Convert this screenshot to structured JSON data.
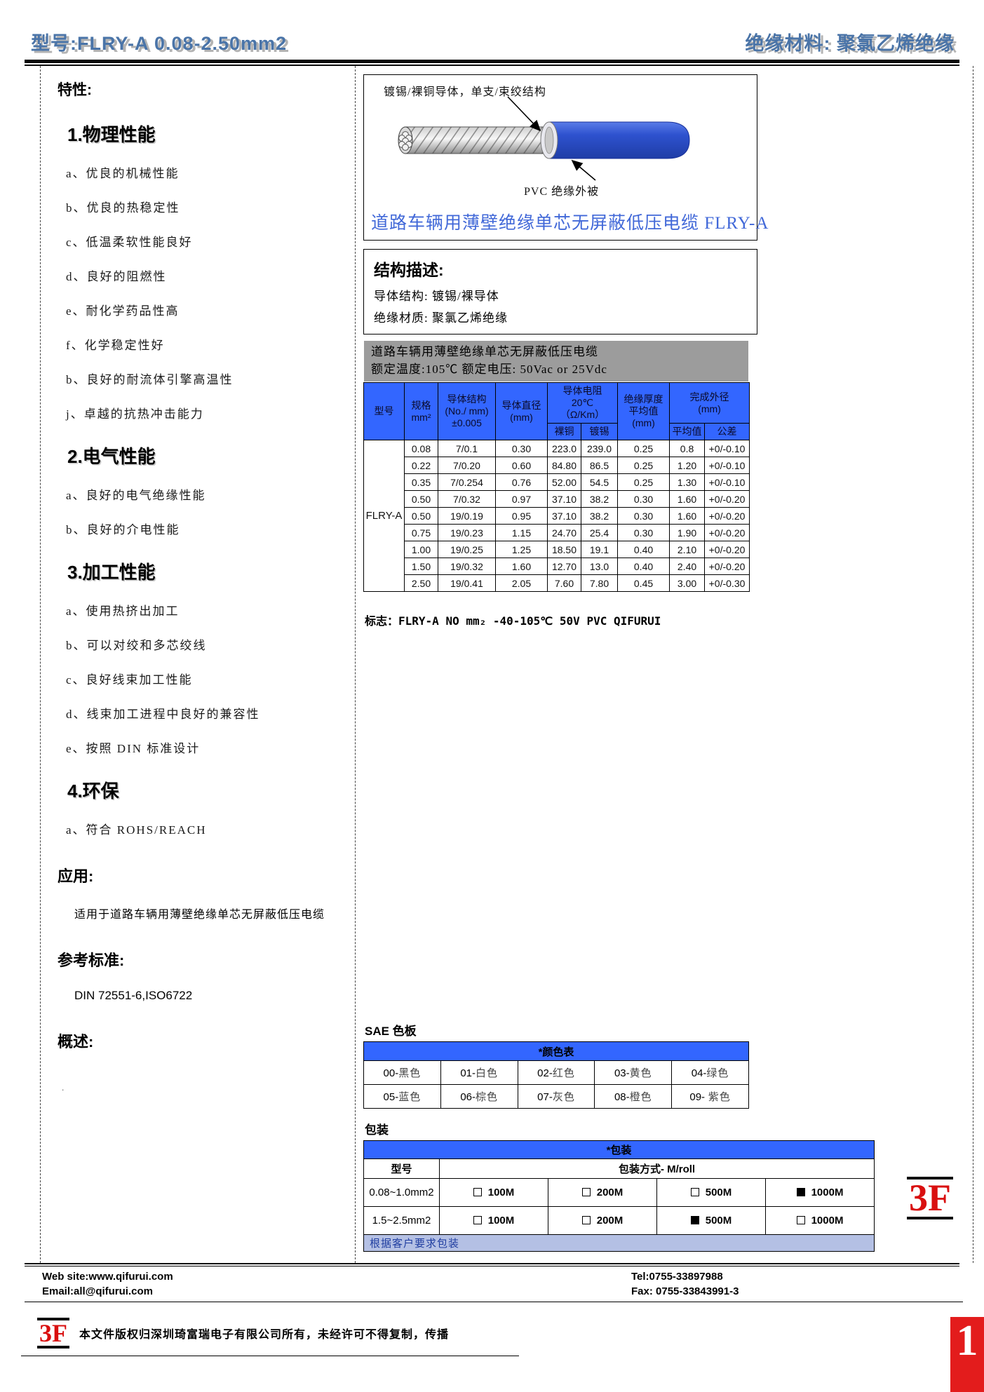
{
  "header": {
    "left_title": "型号:FLRY-A 0.08-2.50mm2",
    "right_title": "绝缘材料: 聚氯乙烯绝缘"
  },
  "left_column": {
    "features_heading": "特性:",
    "sections": [
      {
        "heading": "1.物理性能",
        "items": [
          "a、优良的机械性能",
          "b、优良的热稳定性",
          "c、低温柔软性能良好",
          "d、良好的阻燃性",
          "e、耐化学药品性高",
          "f、化学稳定性好",
          "b、良好的耐流体引擎高温性",
          "j、卓越的抗热冲击能力"
        ]
      },
      {
        "heading": "2.电气性能",
        "items": [
          "a、良好的电气绝缘性能",
          "b、良好的介电性能"
        ]
      },
      {
        "heading": "3.加工性能",
        "items": [
          "a、使用热挤出加工",
          "b、可以对绞和多芯绞线",
          "c、良好线束加工性能",
          "d、线束加工进程中良好的兼容性",
          "e、按照 DIN 标准设计"
        ]
      },
      {
        "heading": "4.环保",
        "items": [
          "a、符合 ROHS/REACH"
        ]
      }
    ],
    "application_heading": "应用:",
    "application_text": "适用于道路车辆用薄壁绝缘单芯无屏蔽低压电缆",
    "standards_heading": "参考标准:",
    "standards_text": "DIN 72551-6,ISO6722",
    "overview_heading": "概述:",
    "overview_dot": "."
  },
  "cable_diagram": {
    "conductor_label": "镀锡/裸铜导体，单支/束绞结构",
    "jacket_label": "PVC 绝缘外被",
    "title": "道路车辆用薄壁绝缘单芯无屏蔽低压电缆  FLRY-A"
  },
  "structure_box": {
    "heading": "结构描述:",
    "line1": "导体结构: 镀锡/裸导体",
    "line2": "绝缘材质: 聚氯乙烯绝缘"
  },
  "banner": {
    "line1": "道路车辆用薄壁绝缘单芯无屏蔽低压电缆",
    "line2": "额定温度:105℃  额定电压: 50Vac or 25Vdc"
  },
  "spec_table": {
    "model": "FLRY-A",
    "headers": {
      "model": "型号",
      "size": "规格\nmm²",
      "structure": "导体结构\n(No./ mm)\n±0.005",
      "diameter": "导体直径\n(mm)",
      "resistance": "导体电阻\n20℃\n（Ω/Km）",
      "res_bare": "裸铜",
      "res_tinned": "镀锡",
      "thickness": "绝缘厚度\n平均值\n(mm)",
      "od": "完成外径\n(mm)",
      "od_avg": "平均值",
      "od_tol": "公差"
    },
    "rows": [
      [
        "0.08",
        "7/0.1",
        "0.30",
        "223.0",
        "239.0",
        "0.25",
        "0.8",
        "+0/-0.10"
      ],
      [
        "0.22",
        "7/0.20",
        "0.60",
        "84.80",
        "86.5",
        "0.25",
        "1.20",
        "+0/-0.10"
      ],
      [
        "0.35",
        "7/0.254",
        "0.76",
        "52.00",
        "54.5",
        "0.25",
        "1.30",
        "+0/-0.10"
      ],
      [
        "0.50",
        "7/0.32",
        "0.97",
        "37.10",
        "38.2",
        "0.30",
        "1.60",
        "+0/-0.20"
      ],
      [
        "0.50",
        "19/0.19",
        "0.95",
        "37.10",
        "38.2",
        "0.30",
        "1.60",
        "+0/-0.20"
      ],
      [
        "0.75",
        "19/0.23",
        "1.15",
        "24.70",
        "25.4",
        "0.30",
        "1.90",
        "+0/-0.20"
      ],
      [
        "1.00",
        "19/0.25",
        "1.25",
        "18.50",
        "19.1",
        "0.40",
        "2.10",
        "+0/-0.20"
      ],
      [
        "1.50",
        "19/0.32",
        "1.60",
        "12.70",
        "13.0",
        "0.40",
        "2.40",
        "+0/-0.20"
      ],
      [
        "2.50",
        "19/0.41",
        "2.05",
        "7.60",
        "7.80",
        "0.45",
        "3.00",
        "+0/-0.30"
      ]
    ]
  },
  "mark_line": {
    "label": "标志：",
    "value": "FLRY-A NO mm₂ -40-105℃ 50V PVC QIFURUI"
  },
  "sae_colors": {
    "heading": "SAE 色板",
    "table_title": "*颜色表",
    "rows": [
      [
        "00-黑色",
        "01-白色",
        "02-红色",
        "03-黄色",
        "04-绿色"
      ],
      [
        "05-蓝色",
        "06-棕色",
        "07-灰色",
        "08-橙色",
        "09- 紫色"
      ]
    ]
  },
  "packaging": {
    "heading": "包装",
    "table_title": "*包装",
    "col_model": "型号",
    "col_method": "包装方式- M/roll",
    "rows": [
      {
        "model": "0.08~1.0mm2",
        "options": [
          {
            "checked": false,
            "label": "100M"
          },
          {
            "checked": false,
            "label": "200M"
          },
          {
            "checked": false,
            "label": "500M"
          },
          {
            "checked": true,
            "label": "1000M"
          }
        ]
      },
      {
        "model": "1.5~2.5mm2",
        "options": [
          {
            "checked": false,
            "label": "100M"
          },
          {
            "checked": false,
            "label": "200M"
          },
          {
            "checked": true,
            "label": "500M"
          },
          {
            "checked": false,
            "label": "1000M"
          }
        ]
      }
    ],
    "note": "根据客户要求包装",
    "logo_text": "3F"
  },
  "footer": {
    "website": "Web site:www.qifurui.com",
    "email": "Email:all@qifurui.com",
    "tel": "Tel:0755-33897988",
    "fax": "Fax: 0755-33843991-3",
    "logo_text": "3F",
    "copyright": "本文件版权归深圳琦富瑞电子有限公司所有，未经许可不得复制，传播",
    "page_number": "1"
  },
  "colors": {
    "wordart_blue": "#4a74a8",
    "table_header_blue": "#3366ff",
    "banner_gray": "#9c9c9c",
    "cable_jacket_blue": "#2e52cf",
    "cable_title_blue": "#4168d8",
    "note_bg_blue": "#b4c0e4",
    "brand_red": "#d90f0f",
    "page_num_red": "#e31c1c"
  }
}
